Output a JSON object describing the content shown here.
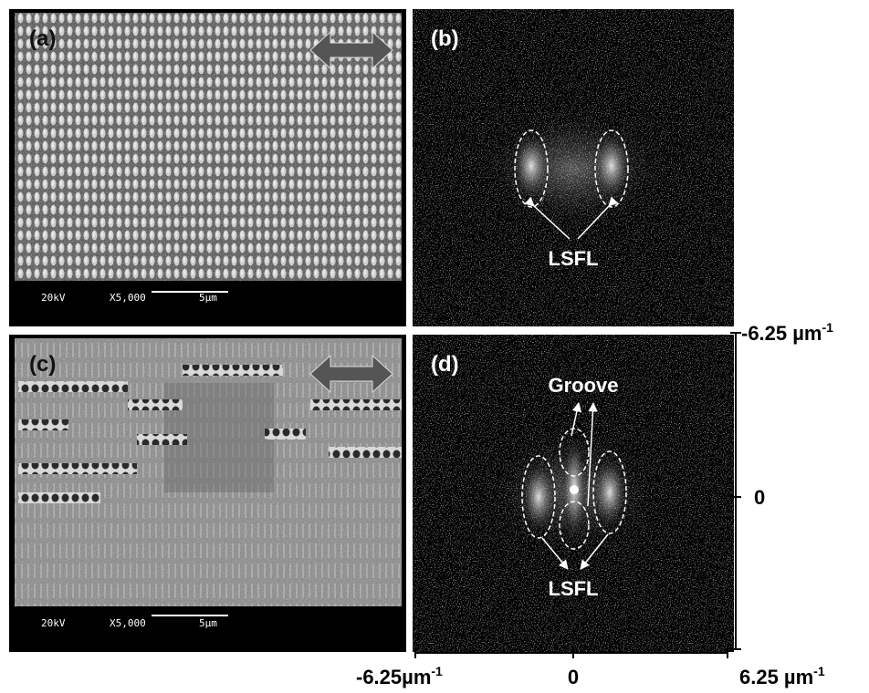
{
  "panels": [
    {
      "label": "(a)",
      "scale_bar": {
        "voltage": "20kV",
        "magnification": "X5,000",
        "length": "5µm"
      }
    },
    {
      "label": "(b)",
      "annotations": [
        "LSFL"
      ]
    },
    {
      "label": "(c)",
      "scale_bar": {
        "voltage": "20kV",
        "magnification": "X5,000",
        "length": "5µm"
      }
    },
    {
      "label": "(d)",
      "annotations": [
        "Groove",
        "LSFL"
      ]
    }
  ],
  "axes": {
    "vertical": [
      {
        "text": "-6.25 µm",
        "sup": "-1"
      },
      {
        "text": "0"
      }
    ],
    "bottom": [
      {
        "text": "-6.25µm",
        "sup": "-1"
      },
      {
        "text": "0"
      },
      {
        "text": "6.25 µm",
        "sup": "-1"
      }
    ]
  }
}
